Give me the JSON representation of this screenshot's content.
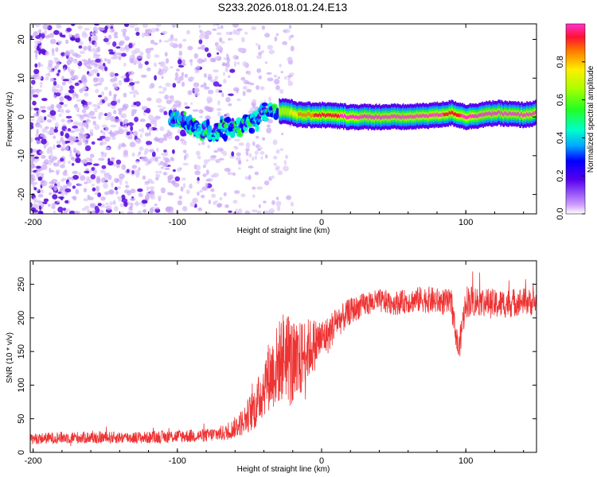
{
  "figure_title": "S233.2026.018.01.24.E13",
  "chart_data": [
    {
      "type": "heatmap",
      "title": "",
      "xlabel": "Height of straight line (km)",
      "ylabel": "Frequency (Hz)",
      "xlim": [
        -202,
        149
      ],
      "ylim": [
        -25,
        24
      ],
      "xticks": [
        -200,
        -100,
        0,
        100
      ],
      "yticks": [
        -20,
        -10,
        0,
        10,
        20
      ],
      "colorbar": {
        "label": "Normalized spectral amplitude",
        "range": [
          0,
          1
        ],
        "ticks": [
          "0.0",
          "0.2",
          "0.4",
          "0.6",
          "0.8"
        ],
        "tick_values": [
          0.0,
          0.2,
          0.4,
          0.6,
          0.8
        ]
      },
      "signal_track": {
        "description_points_x": [
          -100,
          -80,
          -60,
          -45,
          -35,
          -25,
          -15,
          0,
          20,
          40,
          60,
          80,
          90,
          100,
          120,
          140,
          149
        ],
        "frequency_y": [
          -1,
          -4,
          -3,
          0,
          1.5,
          1.5,
          0.5,
          0.5,
          0,
          0,
          0,
          0.5,
          1,
          0,
          1,
          0.5,
          1
        ],
        "amplitude": [
          0.05,
          0.1,
          0.15,
          0.2,
          0.5,
          0.6,
          0.8,
          0.9,
          0.95,
          0.95,
          0.95,
          0.95,
          0.9,
          0.95,
          0.95,
          0.95,
          0.95
        ]
      },
      "noise_region_x": [
        -202,
        -40
      ]
    },
    {
      "type": "line",
      "title": "",
      "xlabel": "Height of straight line (km)",
      "ylabel": "SNR (10 * v/v)",
      "xlim": [
        -202,
        149
      ],
      "ylim": [
        0,
        285
      ],
      "xticks": [
        -200,
        -100,
        0,
        100
      ],
      "yticks": [
        0,
        50,
        100,
        150,
        200,
        250
      ],
      "color": "#ee3333",
      "series": [
        {
          "name": "SNR",
          "x": [
            -202,
            -180,
            -150,
            -120,
            -100,
            -80,
            -65,
            -55,
            -45,
            -38,
            -32,
            -25,
            -18,
            -12,
            -5,
            0,
            5,
            10,
            15,
            20,
            25,
            30,
            40,
            50,
            60,
            70,
            80,
            90,
            95,
            100,
            110,
            120,
            130,
            140,
            149
          ],
          "y": [
            20,
            22,
            22,
            22,
            24,
            25,
            30,
            45,
            70,
            110,
            125,
            150,
            120,
            150,
            160,
            170,
            175,
            195,
            200,
            210,
            215,
            220,
            225,
            222,
            225,
            228,
            225,
            222,
            150,
            225,
            225,
            220,
            222,
            225,
            222
          ],
          "noise_amplitude": [
            8,
            9,
            9,
            9,
            10,
            10,
            12,
            20,
            35,
            50,
            60,
            70,
            70,
            50,
            40,
            30,
            28,
            25,
            22,
            20,
            18,
            18,
            18,
            18,
            18,
            20,
            20,
            20,
            20,
            25,
            22,
            22,
            22,
            20,
            20
          ]
        }
      ]
    }
  ]
}
